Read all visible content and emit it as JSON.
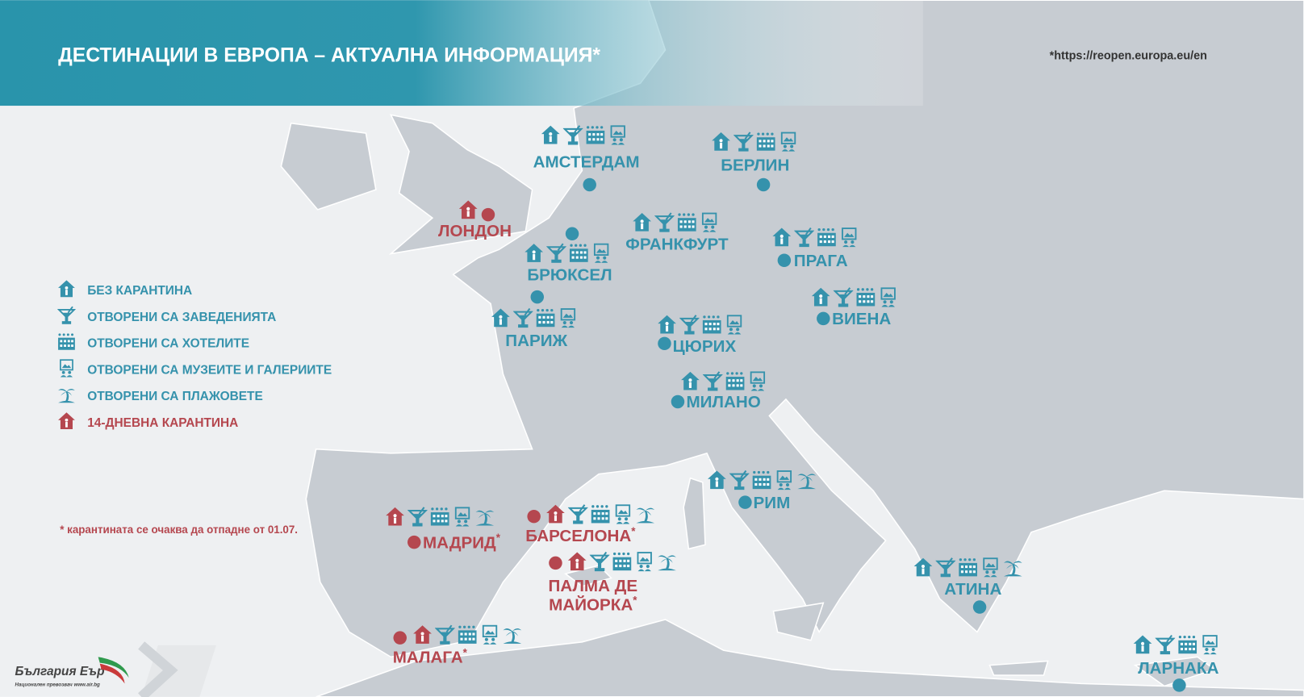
{
  "header": {
    "title": "ДЕСТИНАЦИИ В ЕВРОПА – АКТУАЛНА ИНФОРМАЦИЯ*",
    "source": "*https://reopen.europa.eu/en"
  },
  "legend": [
    "БЕЗ КАРАНТИНА",
    "ОТВОРЕНИ СА ЗАВЕДЕНИЯТА",
    "ОТВОРЕНИ СА ХОТЕЛИТЕ",
    "ОТВОРЕНИ СА МУЗЕИТЕ И ГАЛЕРИИТЕ",
    "ОТВОРЕНИ СА ПЛАЖОВЕТЕ",
    "14-ДНЕВНА КАРАНТИНА"
  ],
  "footnote": "* карантината се очаква да отпадне от 01.07.",
  "logo": {
    "name": "България Еър",
    "tagline": "Национален превозвач  www.air.bg"
  },
  "cities": [
    {
      "name": "АМСТЕРДАМ"
    },
    {
      "name": "БЕРЛИН"
    },
    {
      "name": "ЛОНДОН"
    },
    {
      "name": "БРЮКСЕЛ"
    },
    {
      "name": "ФРАНКФУРТ"
    },
    {
      "name": "ПРАГА"
    },
    {
      "name": "ПАРИЖ"
    },
    {
      "name": "ВИЕНА"
    },
    {
      "name": "ЦЮРИХ"
    },
    {
      "name": "МИЛАНО"
    },
    {
      "name": "РИМ"
    },
    {
      "name": "МАДРИД",
      "note": "*"
    },
    {
      "name": "БАРСЕЛОНА",
      "note": "*"
    },
    {
      "name": [
        "ПАЛМА ДЕ",
        "МАЙОРКА"
      ],
      "note": "*"
    },
    {
      "name": "МАЛАГА",
      "note": "*"
    },
    {
      "name": "АТИНА"
    },
    {
      "name": "ЛАРНАКА"
    }
  ]
}
